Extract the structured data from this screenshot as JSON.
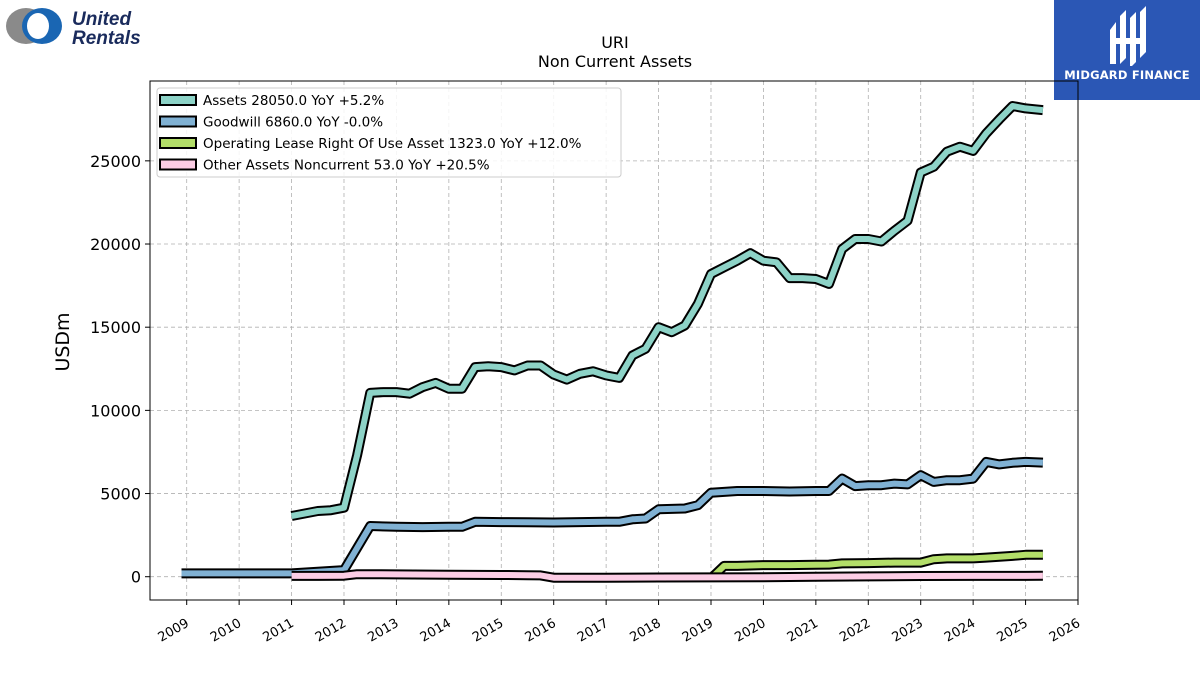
{
  "brand": {
    "logo_line1": "United",
    "logo_line2": "Rentals",
    "badge_text": "MIDGARD FINANCE"
  },
  "chart_data": {
    "type": "line",
    "title": "URI",
    "subtitle": "Non Current  Assets",
    "ylabel": "USDm",
    "xlabel": "",
    "xlim": [
      2008.3,
      2026.0
    ],
    "ylim": [
      -1400,
      29800
    ],
    "x_ticks": [
      2009,
      2010,
      2011,
      2012,
      2013,
      2014,
      2015,
      2016,
      2017,
      2018,
      2019,
      2020,
      2021,
      2022,
      2023,
      2024,
      2025,
      2026
    ],
    "y_ticks": [
      0,
      5000,
      10000,
      15000,
      20000,
      25000
    ],
    "grid": true,
    "legend_position": "top-left",
    "series": [
      {
        "name": "Assets",
        "legend": "Assets  28050.0 YoY +5.2%",
        "color": "#8dd3c7",
        "points": [
          [
            2011.0,
            3650
          ],
          [
            2011.25,
            3800
          ],
          [
            2011.5,
            3950
          ],
          [
            2011.75,
            4000
          ],
          [
            2012.0,
            4150
          ],
          [
            2012.25,
            7300
          ],
          [
            2012.5,
            11050
          ],
          [
            2012.75,
            11100
          ],
          [
            2013.0,
            11100
          ],
          [
            2013.25,
            11000
          ],
          [
            2013.5,
            11400
          ],
          [
            2013.75,
            11650
          ],
          [
            2014.0,
            11300
          ],
          [
            2014.25,
            11300
          ],
          [
            2014.5,
            12600
          ],
          [
            2014.75,
            12650
          ],
          [
            2015.0,
            12600
          ],
          [
            2015.25,
            12400
          ],
          [
            2015.5,
            12700
          ],
          [
            2015.75,
            12700
          ],
          [
            2016.0,
            12150
          ],
          [
            2016.25,
            11850
          ],
          [
            2016.5,
            12200
          ],
          [
            2016.75,
            12350
          ],
          [
            2017.0,
            12100
          ],
          [
            2017.25,
            11950
          ],
          [
            2017.5,
            13300
          ],
          [
            2017.75,
            13700
          ],
          [
            2018.0,
            15000
          ],
          [
            2018.25,
            14700
          ],
          [
            2018.5,
            15100
          ],
          [
            2018.75,
            16400
          ],
          [
            2019.0,
            18200
          ],
          [
            2019.25,
            18600
          ],
          [
            2019.5,
            19000
          ],
          [
            2019.75,
            19450
          ],
          [
            2020.0,
            19000
          ],
          [
            2020.25,
            18900
          ],
          [
            2020.5,
            17950
          ],
          [
            2020.75,
            17950
          ],
          [
            2021.0,
            17900
          ],
          [
            2021.25,
            17600
          ],
          [
            2021.5,
            19700
          ],
          [
            2021.75,
            20300
          ],
          [
            2022.0,
            20300
          ],
          [
            2022.25,
            20150
          ],
          [
            2022.5,
            20800
          ],
          [
            2022.75,
            21400
          ],
          [
            2023.0,
            24300
          ],
          [
            2023.25,
            24650
          ],
          [
            2023.5,
            25550
          ],
          [
            2023.75,
            25850
          ],
          [
            2024.0,
            25600
          ],
          [
            2024.25,
            26650
          ],
          [
            2024.5,
            27500
          ],
          [
            2024.75,
            28300
          ],
          [
            2025.0,
            28150
          ],
          [
            2025.33,
            28050
          ]
        ]
      },
      {
        "name": "Goodwill",
        "legend": "Goodwill  6860.0 YoY -0.0%",
        "color": "#80b1d3",
        "points": [
          [
            2008.9,
            200
          ],
          [
            2011.0,
            200
          ],
          [
            2011.5,
            300
          ],
          [
            2012.0,
            400
          ],
          [
            2012.5,
            3050
          ],
          [
            2013.0,
            3000
          ],
          [
            2013.5,
            2980
          ],
          [
            2014.0,
            3000
          ],
          [
            2014.25,
            3000
          ],
          [
            2014.5,
            3300
          ],
          [
            2015.0,
            3280
          ],
          [
            2015.5,
            3270
          ],
          [
            2016.0,
            3260
          ],
          [
            2016.5,
            3280
          ],
          [
            2017.0,
            3300
          ],
          [
            2017.25,
            3300
          ],
          [
            2017.5,
            3450
          ],
          [
            2017.75,
            3500
          ],
          [
            2018.0,
            4050
          ],
          [
            2018.5,
            4100
          ],
          [
            2018.75,
            4300
          ],
          [
            2019.0,
            5050
          ],
          [
            2019.5,
            5150
          ],
          [
            2020.0,
            5150
          ],
          [
            2020.5,
            5120
          ],
          [
            2021.0,
            5150
          ],
          [
            2021.25,
            5150
          ],
          [
            2021.5,
            5900
          ],
          [
            2021.75,
            5450
          ],
          [
            2022.0,
            5500
          ],
          [
            2022.25,
            5500
          ],
          [
            2022.5,
            5600
          ],
          [
            2022.75,
            5550
          ],
          [
            2023.0,
            6100
          ],
          [
            2023.25,
            5700
          ],
          [
            2023.5,
            5800
          ],
          [
            2023.75,
            5800
          ],
          [
            2024.0,
            5900
          ],
          [
            2024.25,
            6900
          ],
          [
            2024.5,
            6750
          ],
          [
            2024.75,
            6850
          ],
          [
            2025.0,
            6900
          ],
          [
            2025.33,
            6860
          ]
        ]
      },
      {
        "name": "Operating Lease Right Of Use Asset",
        "legend": "Operating Lease Right Of Use Asset  1323.0 YoY +12.0%",
        "color": "#b3de69",
        "points": [
          [
            2019.0,
            -100
          ],
          [
            2019.25,
            650
          ],
          [
            2019.5,
            650
          ],
          [
            2020.0,
            700
          ],
          [
            2020.5,
            700
          ],
          [
            2021.0,
            720
          ],
          [
            2021.25,
            730
          ],
          [
            2021.5,
            800
          ],
          [
            2022.0,
            820
          ],
          [
            2022.5,
            850
          ],
          [
            2023.0,
            850
          ],
          [
            2023.25,
            1050
          ],
          [
            2023.5,
            1100
          ],
          [
            2024.0,
            1100
          ],
          [
            2024.25,
            1150
          ],
          [
            2024.75,
            1250
          ],
          [
            2025.0,
            1320
          ],
          [
            2025.33,
            1323
          ]
        ]
      },
      {
        "name": "Other Assets Noncurrent",
        "legend": "Other Assets Noncurrent  53.0 YoY +20.5%",
        "color": "#fccde5",
        "points": [
          [
            2011.0,
            50
          ],
          [
            2011.5,
            50
          ],
          [
            2012.0,
            60
          ],
          [
            2012.25,
            150
          ],
          [
            2012.5,
            150
          ],
          [
            2013.0,
            140
          ],
          [
            2014.0,
            120
          ],
          [
            2015.0,
            100
          ],
          [
            2015.5,
            90
          ],
          [
            2015.75,
            80
          ],
          [
            2016.0,
            -60
          ],
          [
            2017.0,
            -60
          ],
          [
            2018.0,
            -50
          ],
          [
            2019.0,
            -40
          ],
          [
            2020.0,
            -30
          ],
          [
            2021.0,
            0
          ],
          [
            2022.0,
            20
          ],
          [
            2023.0,
            40
          ],
          [
            2024.0,
            50
          ],
          [
            2025.0,
            50
          ],
          [
            2025.33,
            53
          ]
        ]
      }
    ]
  }
}
